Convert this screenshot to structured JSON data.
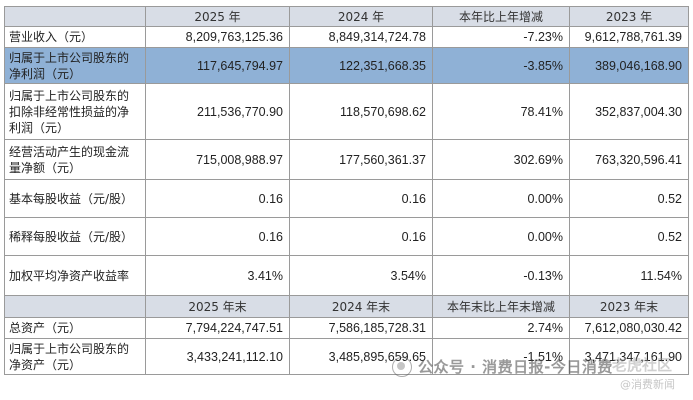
{
  "header1": [
    "",
    "2025 年",
    "2024 年",
    "本年比上年增减",
    "2023 年"
  ],
  "rows1": [
    {
      "label": "营业收入（元）",
      "v1": "8,209,763,125.36",
      "v2": "8,849,314,724.78",
      "chg": "-7.23%",
      "v3": "9,612,788,761.39"
    },
    {
      "label": "归属于上市公司股东的净利润（元）",
      "v1": "117,645,794.97",
      "v2": "122,351,668.35",
      "chg": "-3.85%",
      "v3": "389,046,168.90"
    },
    {
      "label": "归属于上市公司股东的扣除非经常性损益的净利润（元）",
      "v1": "211,536,770.90",
      "v2": "118,570,698.62",
      "chg": "78.41%",
      "v3": "352,837,004.30"
    },
    {
      "label": "经营活动产生的现金流量净额（元）",
      "v1": "715,008,988.97",
      "v2": "177,560,361.37",
      "chg": "302.69%",
      "v3": "763,320,596.41"
    },
    {
      "label": "基本每股收益（元/股）",
      "v1": "0.16",
      "v2": "0.16",
      "chg": "0.00%",
      "v3": "0.52"
    },
    {
      "label": "稀释每股收益（元/股）",
      "v1": "0.16",
      "v2": "0.16",
      "chg": "0.00%",
      "v3": "0.52"
    },
    {
      "label": "加权平均净资产收益率",
      "v1": "3.41%",
      "v2": "3.54%",
      "chg": "-0.13%",
      "v3": "11.54%"
    }
  ],
  "header2": [
    "",
    "2025 年末",
    "2024 年末",
    "本年末比上年末增减",
    "2023 年末"
  ],
  "rows2": [
    {
      "label": "总资产（元）",
      "v1": "7,794,224,747.51",
      "v2": "7,586,185,728.31",
      "chg": "2.74%",
      "v3": "7,612,080,030.42"
    },
    {
      "label": "归属于上市公司股东的净资产（元）",
      "v1": "3,433,241,112.10",
      "v2": "3,485,895,659.65",
      "chg": "-1.51%",
      "v3": "3,471,347,161.90"
    }
  ],
  "watermark": {
    "text": "公众号 · 消费日报-今日消费",
    "brand": "老虎社区",
    "sub": "@消费新闻"
  }
}
